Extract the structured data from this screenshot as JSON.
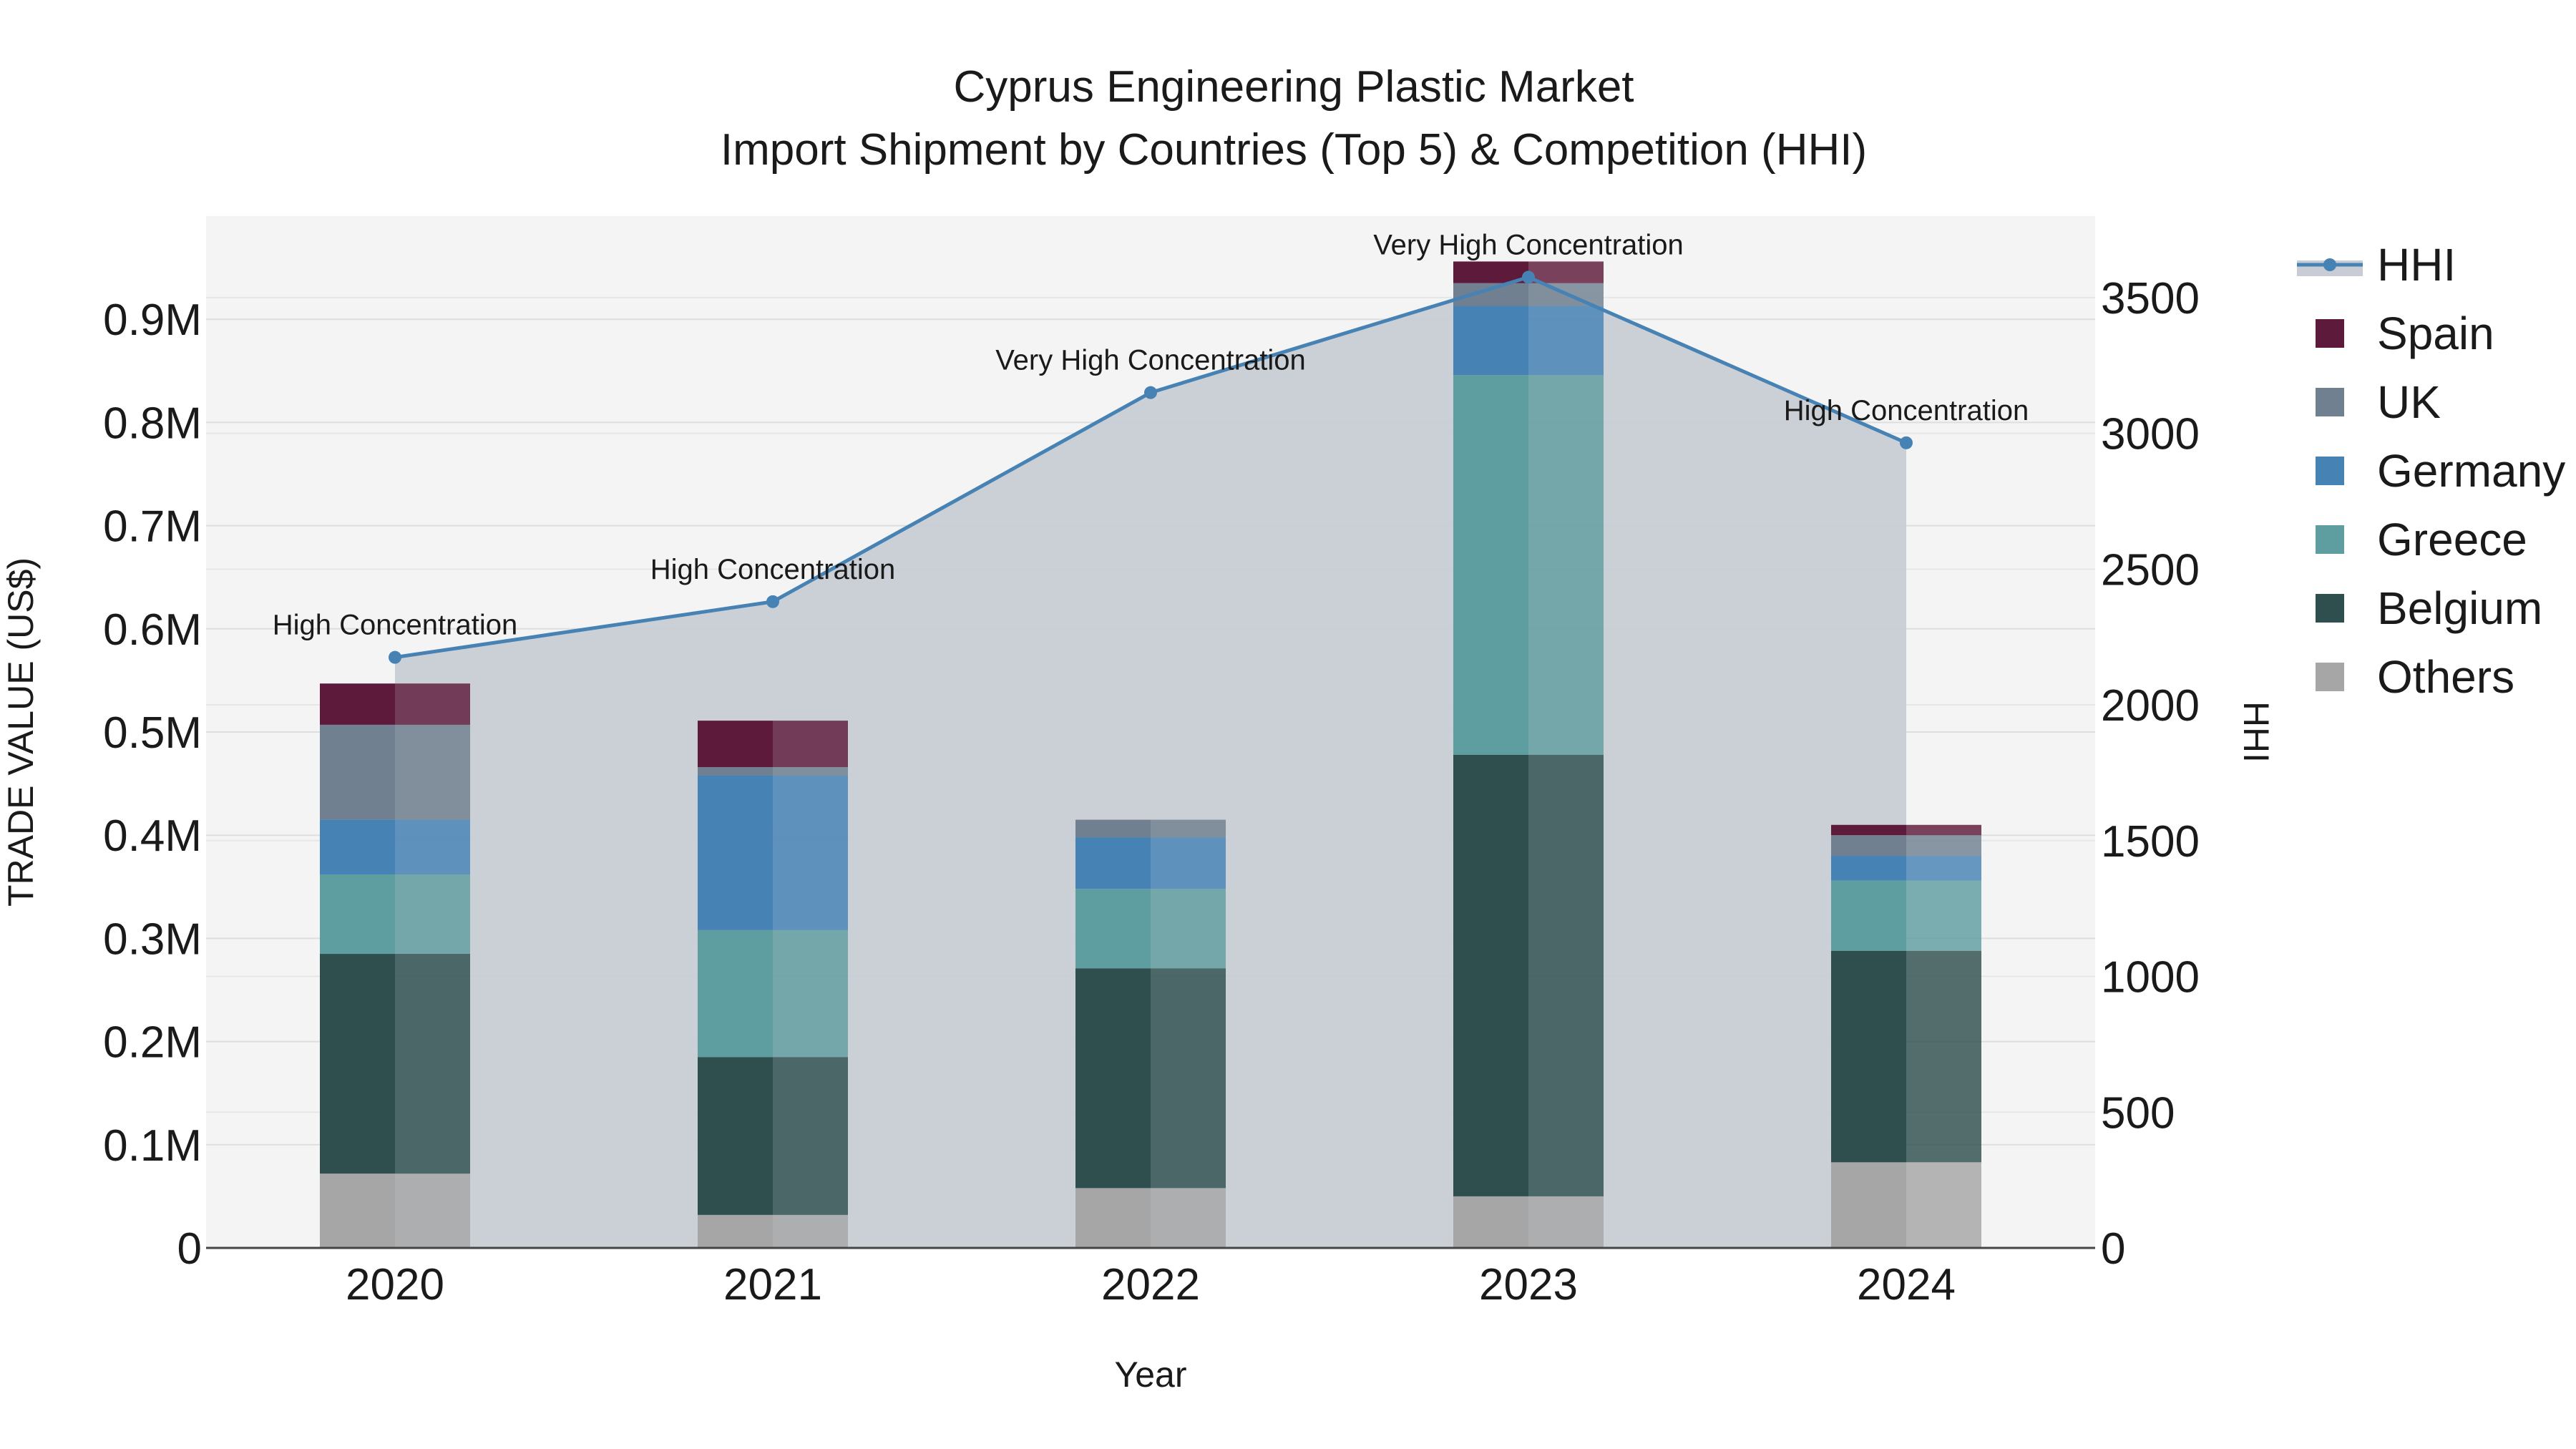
{
  "chart_data": {
    "type": "bar",
    "title_line1": "Cyprus Engineering Plastic Market",
    "title_line2": "Import Shipment by Countries (Top 5) & Competition (HHI)",
    "xlabel": "Year",
    "ylabel": "TRADE VALUE (US$)",
    "y2label": "HHI",
    "categories": [
      "2020",
      "2021",
      "2022",
      "2023",
      "2024"
    ],
    "ylim": [
      0,
      1000000
    ],
    "y_ticks": [
      0,
      100000,
      200000,
      300000,
      400000,
      500000,
      600000,
      700000,
      800000,
      900000
    ],
    "y_tick_labels": [
      "0",
      "0.1M",
      "0.2M",
      "0.3M",
      "0.4M",
      "0.5M",
      "0.6M",
      "0.7M",
      "0.8M",
      "0.9M"
    ],
    "y2lim": [
      0,
      3800
    ],
    "y2_ticks": [
      0,
      500,
      1000,
      1500,
      2000,
      2500,
      3000,
      3500
    ],
    "y2_tick_labels": [
      "0",
      "500",
      "1000",
      "1500",
      "2000",
      "2500",
      "3000",
      "3500"
    ],
    "series": [
      {
        "name": "Others",
        "color": "#a6a6a6",
        "values": [
          72000,
          32000,
          58000,
          50000,
          83000
        ]
      },
      {
        "name": "Belgium",
        "color": "#2f4f4f",
        "values": [
          213000,
          153000,
          213000,
          428000,
          205000
        ]
      },
      {
        "name": "Greece",
        "color": "#5f9ea0",
        "values": [
          77000,
          123000,
          77000,
          368000,
          68000
        ]
      },
      {
        "name": "Germany",
        "color": "#4682b4",
        "values": [
          53000,
          150000,
          50000,
          67000,
          24000
        ]
      },
      {
        "name": "UK",
        "color": "#708090",
        "values": [
          92000,
          8000,
          17000,
          22000,
          20000
        ]
      },
      {
        "name": "Spain",
        "color": "#5e1a3a",
        "values": [
          40000,
          45000,
          0,
          21000,
          10000
        ]
      }
    ],
    "hhi": {
      "name": "HHI",
      "color": "#4682b4",
      "area_color": "#c8ccd4",
      "values": [
        2175,
        2380,
        3150,
        3575,
        2965
      ],
      "labels": [
        "High Concentration",
        "High Concentration",
        "Very High Concentration",
        "Very High Concentration",
        "High Concentration"
      ]
    },
    "legend": [
      "HHI",
      "Spain",
      "UK",
      "Germany",
      "Greece",
      "Belgium",
      "Others"
    ],
    "legend_position": "right",
    "grid": true
  }
}
